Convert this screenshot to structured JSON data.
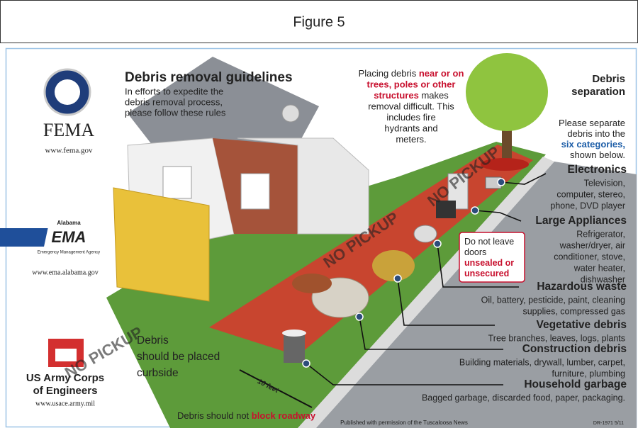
{
  "header": {
    "title": "Figure 5"
  },
  "logos": {
    "fema": {
      "name": "FEMA",
      "url": "www.fema.gov"
    },
    "ema": {
      "state": "Alabama",
      "name": "EMA",
      "agency": "Emergency Management Agency",
      "url": "www.ema.alabama.gov"
    },
    "usace": {
      "name_lines": [
        "US Army Corps",
        "of Engineers"
      ],
      "url": "www.usace.army.mil"
    }
  },
  "guidelines": {
    "title": "Debris removal guidelines",
    "subtitle_lines": [
      "In efforts to expedite the",
      "debris removal process,",
      "please follow these rules"
    ]
  },
  "placement_note": {
    "lines": [
      [
        {
          "text": "Placing debris ",
          "color": "#222222"
        },
        {
          "text": "near or on",
          "color": "#c8102e"
        }
      ],
      [
        {
          "text": "trees, poles or other",
          "color": "#c8102e"
        }
      ],
      [
        {
          "text": "structures",
          "color": "#c8102e"
        },
        {
          "text": " makes",
          "color": "#222222"
        }
      ],
      [
        {
          "text": "removal difficult. This",
          "color": "#222222"
        }
      ],
      [
        {
          "text": "includes fire",
          "color": "#222222"
        }
      ],
      [
        {
          "text": "hydrants and",
          "color": "#222222"
        }
      ],
      [
        {
          "text": "meters.",
          "color": "#222222"
        }
      ]
    ]
  },
  "separation": {
    "title_lines": [
      "Debris",
      "separation"
    ],
    "lines": [
      [
        {
          "text": "Please separate",
          "color": "#222222"
        }
      ],
      [
        {
          "text": "debris into the",
          "color": "#222222"
        }
      ],
      [
        {
          "text": "six categories,",
          "color": "#1f5fa8"
        }
      ],
      [
        {
          "text": "shown below.",
          "color": "#222222"
        }
      ]
    ]
  },
  "categories": [
    {
      "name": "Electronics",
      "lines": [
        "Television,",
        "computer, stereo,",
        "phone, DVD player"
      ]
    },
    {
      "name": "Large Appliances",
      "lines": [
        "Refrigerator,",
        "washer/dryer, air",
        "conditioner, stove,",
        "water heater,",
        "dishwasher"
      ]
    },
    {
      "name": "Hazardous waste",
      "lines": [
        "Oil, battery, pesticide, paint, cleaning",
        "supplies, compressed gas"
      ]
    },
    {
      "name": "Vegetative debris",
      "lines": [
        "Tree branches, leaves, logs, plants"
      ]
    },
    {
      "name": "Construction debris",
      "lines": [
        "Building materials, drywall, lumber, carpet,",
        "furniture, plumbing"
      ]
    },
    {
      "name": "Household garbage",
      "lines": [
        "Bagged garbage, discarded food, paper, packaging."
      ]
    }
  ],
  "street_labels": [
    "NO PICKUP",
    "NO PICKUP",
    "NO PICKUP"
  ],
  "doors_note": {
    "lines": [
      [
        {
          "text": "Do not leave",
          "color": "#222222"
        }
      ],
      [
        {
          "text": "doors",
          "color": "#222222"
        }
      ],
      [
        {
          "text": "unsealed or",
          "color": "#c8102e"
        }
      ],
      [
        {
          "text": "unsecured",
          "color": "#c8102e"
        }
      ]
    ]
  },
  "curbside_note": {
    "lines": [
      "Debris",
      "should be placed",
      "curbside"
    ]
  },
  "distance": "10 feet",
  "roadway_note": {
    "lines": [
      [
        {
          "text": "Debris should not ",
          "color": "#222222"
        },
        {
          "text": "block roadway",
          "color": "#c8102e"
        }
      ]
    ]
  },
  "footer": {
    "credit": "Published with permission of the Tuscaloosa News",
    "code": "DR-1971 5/11"
  }
}
